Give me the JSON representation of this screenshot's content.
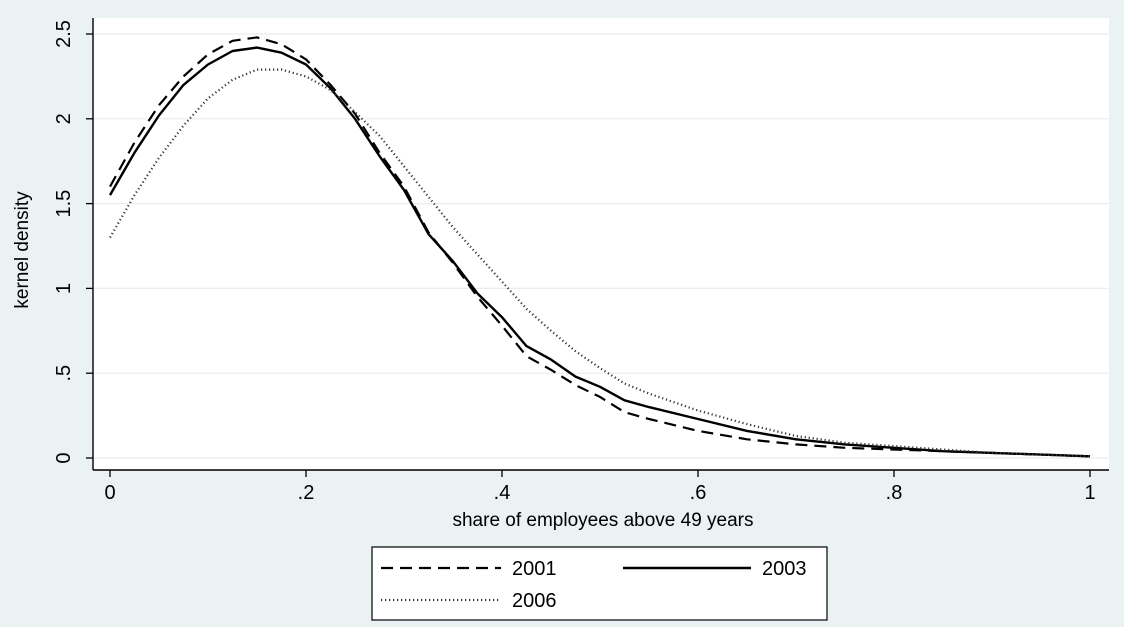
{
  "chart_data": {
    "type": "line",
    "xlabel": "share of employees above 49 years",
    "ylabel": "kernel density",
    "xlim": [
      0,
      1
    ],
    "ylim": [
      0,
      2.5
    ],
    "xticks": [
      {
        "value": 0,
        "label": "0"
      },
      {
        "value": 0.2,
        "label": ".2"
      },
      {
        "value": 0.4,
        "label": ".4"
      },
      {
        "value": 0.6,
        "label": ".6"
      },
      {
        "value": 0.8,
        "label": ".8"
      },
      {
        "value": 1,
        "label": "1"
      }
    ],
    "yticks": [
      {
        "value": 0,
        "label": "0"
      },
      {
        "value": 0.5,
        "label": ".5"
      },
      {
        "value": 1,
        "label": "1"
      },
      {
        "value": 1.5,
        "label": "1.5"
      },
      {
        "value": 2,
        "label": "2"
      },
      {
        "value": 2.5,
        "label": "2.5"
      }
    ],
    "grid": "horizontal",
    "legend_position": "bottom",
    "series": [
      {
        "name": "2001",
        "style": "dashed",
        "x": [
          0,
          0.025,
          0.05,
          0.075,
          0.1,
          0.125,
          0.15,
          0.175,
          0.2,
          0.225,
          0.25,
          0.275,
          0.3,
          0.325,
          0.35,
          0.375,
          0.4,
          0.425,
          0.45,
          0.475,
          0.5,
          0.525,
          0.55,
          0.6,
          0.65,
          0.7,
          0.75,
          0.8,
          0.85,
          0.9,
          0.95,
          1.0
        ],
        "values": [
          1.6,
          1.86,
          2.08,
          2.25,
          2.38,
          2.46,
          2.48,
          2.44,
          2.35,
          2.2,
          2.03,
          1.8,
          1.6,
          1.33,
          1.15,
          0.95,
          0.78,
          0.6,
          0.52,
          0.43,
          0.36,
          0.27,
          0.23,
          0.16,
          0.11,
          0.08,
          0.06,
          0.05,
          0.04,
          0.03,
          0.02,
          0.01
        ]
      },
      {
        "name": "2003",
        "style": "solid",
        "x": [
          0,
          0.025,
          0.05,
          0.075,
          0.1,
          0.125,
          0.15,
          0.175,
          0.2,
          0.225,
          0.25,
          0.275,
          0.3,
          0.325,
          0.35,
          0.375,
          0.4,
          0.425,
          0.45,
          0.475,
          0.5,
          0.525,
          0.55,
          0.6,
          0.65,
          0.7,
          0.75,
          0.8,
          0.85,
          0.9,
          0.95,
          1.0
        ],
        "values": [
          1.55,
          1.8,
          2.02,
          2.2,
          2.32,
          2.4,
          2.42,
          2.39,
          2.32,
          2.18,
          2.0,
          1.78,
          1.58,
          1.32,
          1.16,
          0.97,
          0.83,
          0.66,
          0.58,
          0.48,
          0.42,
          0.34,
          0.3,
          0.23,
          0.16,
          0.11,
          0.08,
          0.06,
          0.04,
          0.03,
          0.02,
          0.01
        ]
      },
      {
        "name": "2006",
        "style": "dotted",
        "x": [
          0,
          0.025,
          0.05,
          0.075,
          0.1,
          0.125,
          0.15,
          0.175,
          0.2,
          0.225,
          0.25,
          0.275,
          0.3,
          0.325,
          0.35,
          0.375,
          0.4,
          0.425,
          0.45,
          0.475,
          0.5,
          0.525,
          0.55,
          0.6,
          0.65,
          0.7,
          0.75,
          0.8,
          0.85,
          0.9,
          0.95,
          1.0
        ],
        "values": [
          1.3,
          1.55,
          1.77,
          1.96,
          2.12,
          2.23,
          2.29,
          2.29,
          2.25,
          2.17,
          2.04,
          1.9,
          1.72,
          1.54,
          1.36,
          1.2,
          1.04,
          0.88,
          0.75,
          0.63,
          0.53,
          0.44,
          0.38,
          0.28,
          0.2,
          0.13,
          0.09,
          0.07,
          0.05,
          0.03,
          0.02,
          0.01
        ]
      }
    ]
  }
}
